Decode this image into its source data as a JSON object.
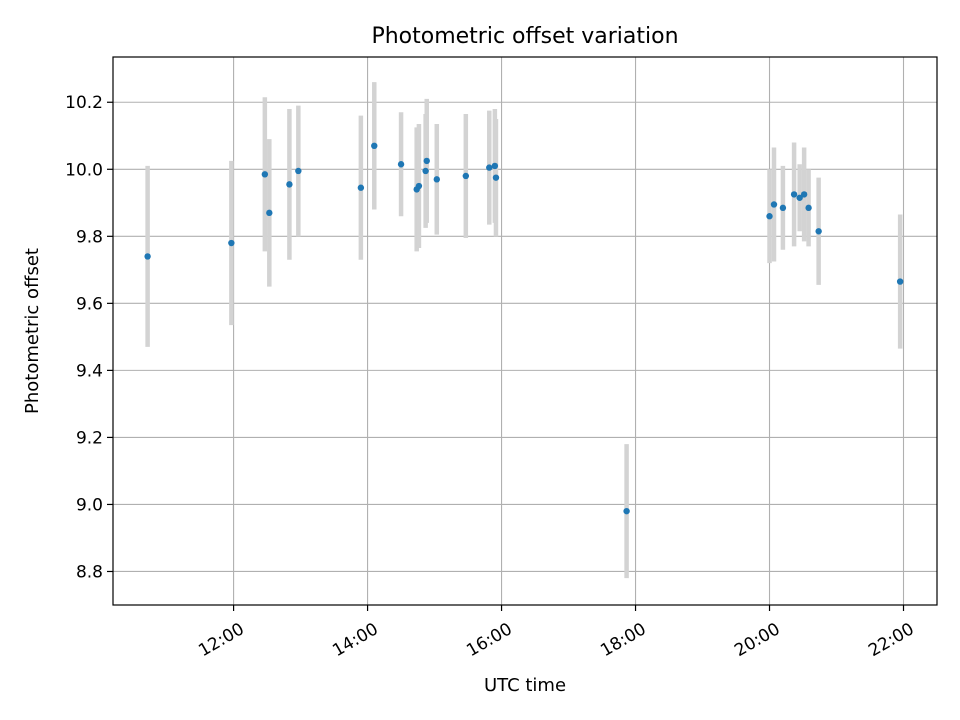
{
  "chart_data": {
    "type": "scatter",
    "title": "Photometric offset variation",
    "xlabel": "UTC time",
    "ylabel": "Photometric offset",
    "x_axis": "time",
    "xlim": [
      "10:12",
      "22:30"
    ],
    "ylim": [
      8.7,
      10.335
    ],
    "x_ticks": [
      "12:00",
      "14:00",
      "16:00",
      "18:00",
      "20:00",
      "22:00"
    ],
    "y_ticks": [
      8.8,
      9.0,
      9.2,
      9.4,
      9.6,
      9.8,
      10.0,
      10.2
    ],
    "y_tick_labels": [
      "8.8",
      "9.0",
      "9.2",
      "9.4",
      "9.6",
      "9.8",
      "10.0",
      "10.2"
    ],
    "grid": true,
    "marker_color": "#1f77b4",
    "errorbar_color": "#d3d3d3",
    "points": [
      {
        "time": "10:43",
        "y": 9.74,
        "err": 0.27
      },
      {
        "time": "11:58",
        "y": 9.78,
        "err": 0.245
      },
      {
        "time": "12:28",
        "y": 9.985,
        "err": 0.23
      },
      {
        "time": "12:32",
        "y": 9.87,
        "err": 0.22
      },
      {
        "time": "12:50",
        "y": 9.955,
        "err": 0.225
      },
      {
        "time": "12:58",
        "y": 9.995,
        "err": 0.195
      },
      {
        "time": "13:54",
        "y": 9.945,
        "err": 0.215
      },
      {
        "time": "14:06",
        "y": 10.07,
        "err": 0.19
      },
      {
        "time": "14:30",
        "y": 10.015,
        "err": 0.155
      },
      {
        "time": "14:44",
        "y": 9.94,
        "err": 0.185
      },
      {
        "time": "14:46",
        "y": 9.95,
        "err": 0.185
      },
      {
        "time": "14:52",
        "y": 9.995,
        "err": 0.17
      },
      {
        "time": "14:53",
        "y": 10.025,
        "err": 0.185
      },
      {
        "time": "15:02",
        "y": 9.97,
        "err": 0.165
      },
      {
        "time": "15:28",
        "y": 9.98,
        "err": 0.185
      },
      {
        "time": "15:49",
        "y": 10.005,
        "err": 0.17
      },
      {
        "time": "15:54",
        "y": 10.01,
        "err": 0.17
      },
      {
        "time": "15:55",
        "y": 9.975,
        "err": 0.175
      },
      {
        "time": "17:52",
        "y": 8.98,
        "err": 0.2
      },
      {
        "time": "20:00",
        "y": 9.86,
        "err": 0.14
      },
      {
        "time": "20:04",
        "y": 9.895,
        "err": 0.17
      },
      {
        "time": "20:12",
        "y": 9.885,
        "err": 0.125
      },
      {
        "time": "20:22",
        "y": 9.925,
        "err": 0.155
      },
      {
        "time": "20:27",
        "y": 9.915,
        "err": 0.1
      },
      {
        "time": "20:31",
        "y": 9.925,
        "err": 0.14
      },
      {
        "time": "20:35",
        "y": 9.885,
        "err": 0.115
      },
      {
        "time": "20:44",
        "y": 9.815,
        "err": 0.16
      },
      {
        "time": "21:57",
        "y": 9.665,
        "err": 0.2
      }
    ]
  }
}
